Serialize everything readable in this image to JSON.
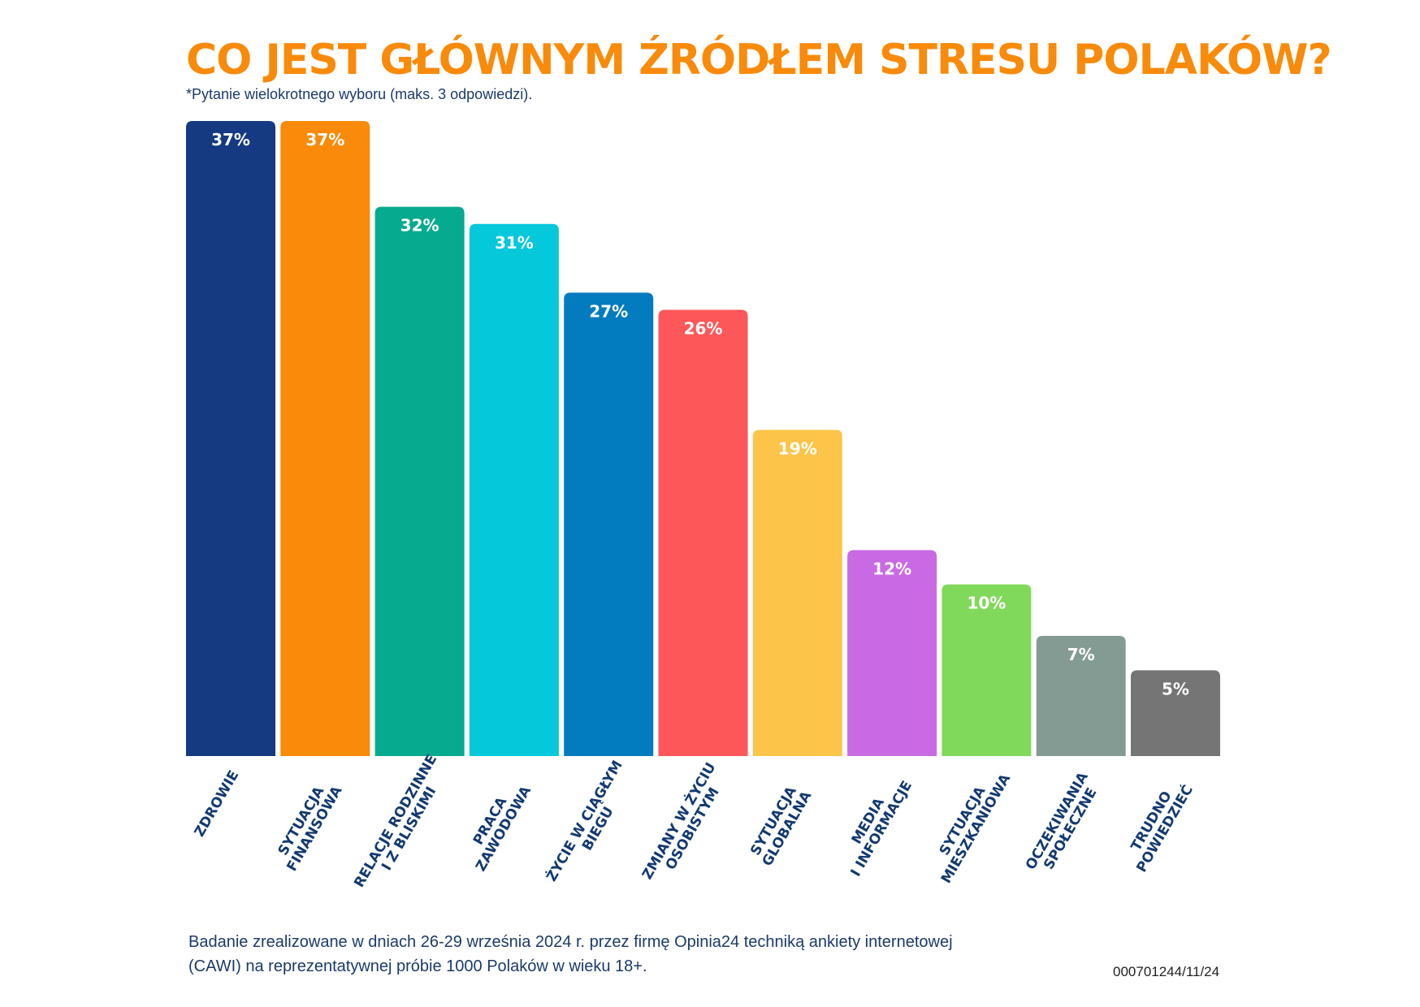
{
  "title": "CO JEST GŁÓWNYM ŹRÓDŁEM STRESU POLAKÓW?",
  "subtitle": "*Pytanie wielokrotnego wyboru (maks. 3 odpowiedzi).",
  "footnote": "Badanie zrealizowane w dniach 26-29 września 2024 r. przez firmę Opinia24 techniką ankiety internetowej (CAWI) na reprezentatywnej próbie 1000 Polaków w wieku 18+.",
  "code": "000701244/11/24",
  "chart_data": {
    "type": "bar",
    "title": "CO JEST GŁÓWNYM ŹRÓDŁEM STRESU POLAKÓW?",
    "subtitle": "*Pytanie wielokrotnego wyboru (maks. 3 odpowiedzi).",
    "xlabel": "",
    "ylabel": "",
    "ylim": [
      0,
      37
    ],
    "grid": false,
    "legend": "none",
    "unit": "%",
    "categories": [
      [
        "ZDROWIE"
      ],
      [
        "SYTUACJA",
        "FINANSOWA"
      ],
      [
        "RELACJE RODZINNE",
        "I Z BLISKIMI"
      ],
      [
        "PRACA",
        "ZAWODOWA"
      ],
      [
        "ŻYCIE W CIĄGŁYM",
        "BIEGU"
      ],
      [
        "ZMIANY W ŻYCIU",
        "OSOBISTYM"
      ],
      [
        "SYTUACJA",
        "GLOBALNA"
      ],
      [
        "MEDIA",
        "I INFORMACJE"
      ],
      [
        "SYTUACJA",
        "MIESZKANIOWA"
      ],
      [
        "OCZEKIWANIA",
        "SPOŁECZNE"
      ],
      [
        "TRUDNO",
        "POWIEDZIEĆ"
      ]
    ],
    "values": [
      37,
      37,
      32,
      31,
      27,
      26,
      19,
      12,
      10,
      7,
      5
    ],
    "labels": [
      "37%",
      "37%",
      "32%",
      "31%",
      "27%",
      "26%",
      "19%",
      "12%",
      "10%",
      "7%",
      "5%"
    ],
    "colors": [
      "#153a82",
      "#f98a0a",
      "#06aa8f",
      "#05c8db",
      "#037bbf",
      "#fd5759",
      "#fdc44a",
      "#c96ae4",
      "#80d95a",
      "#839b93",
      "#757575"
    ]
  }
}
